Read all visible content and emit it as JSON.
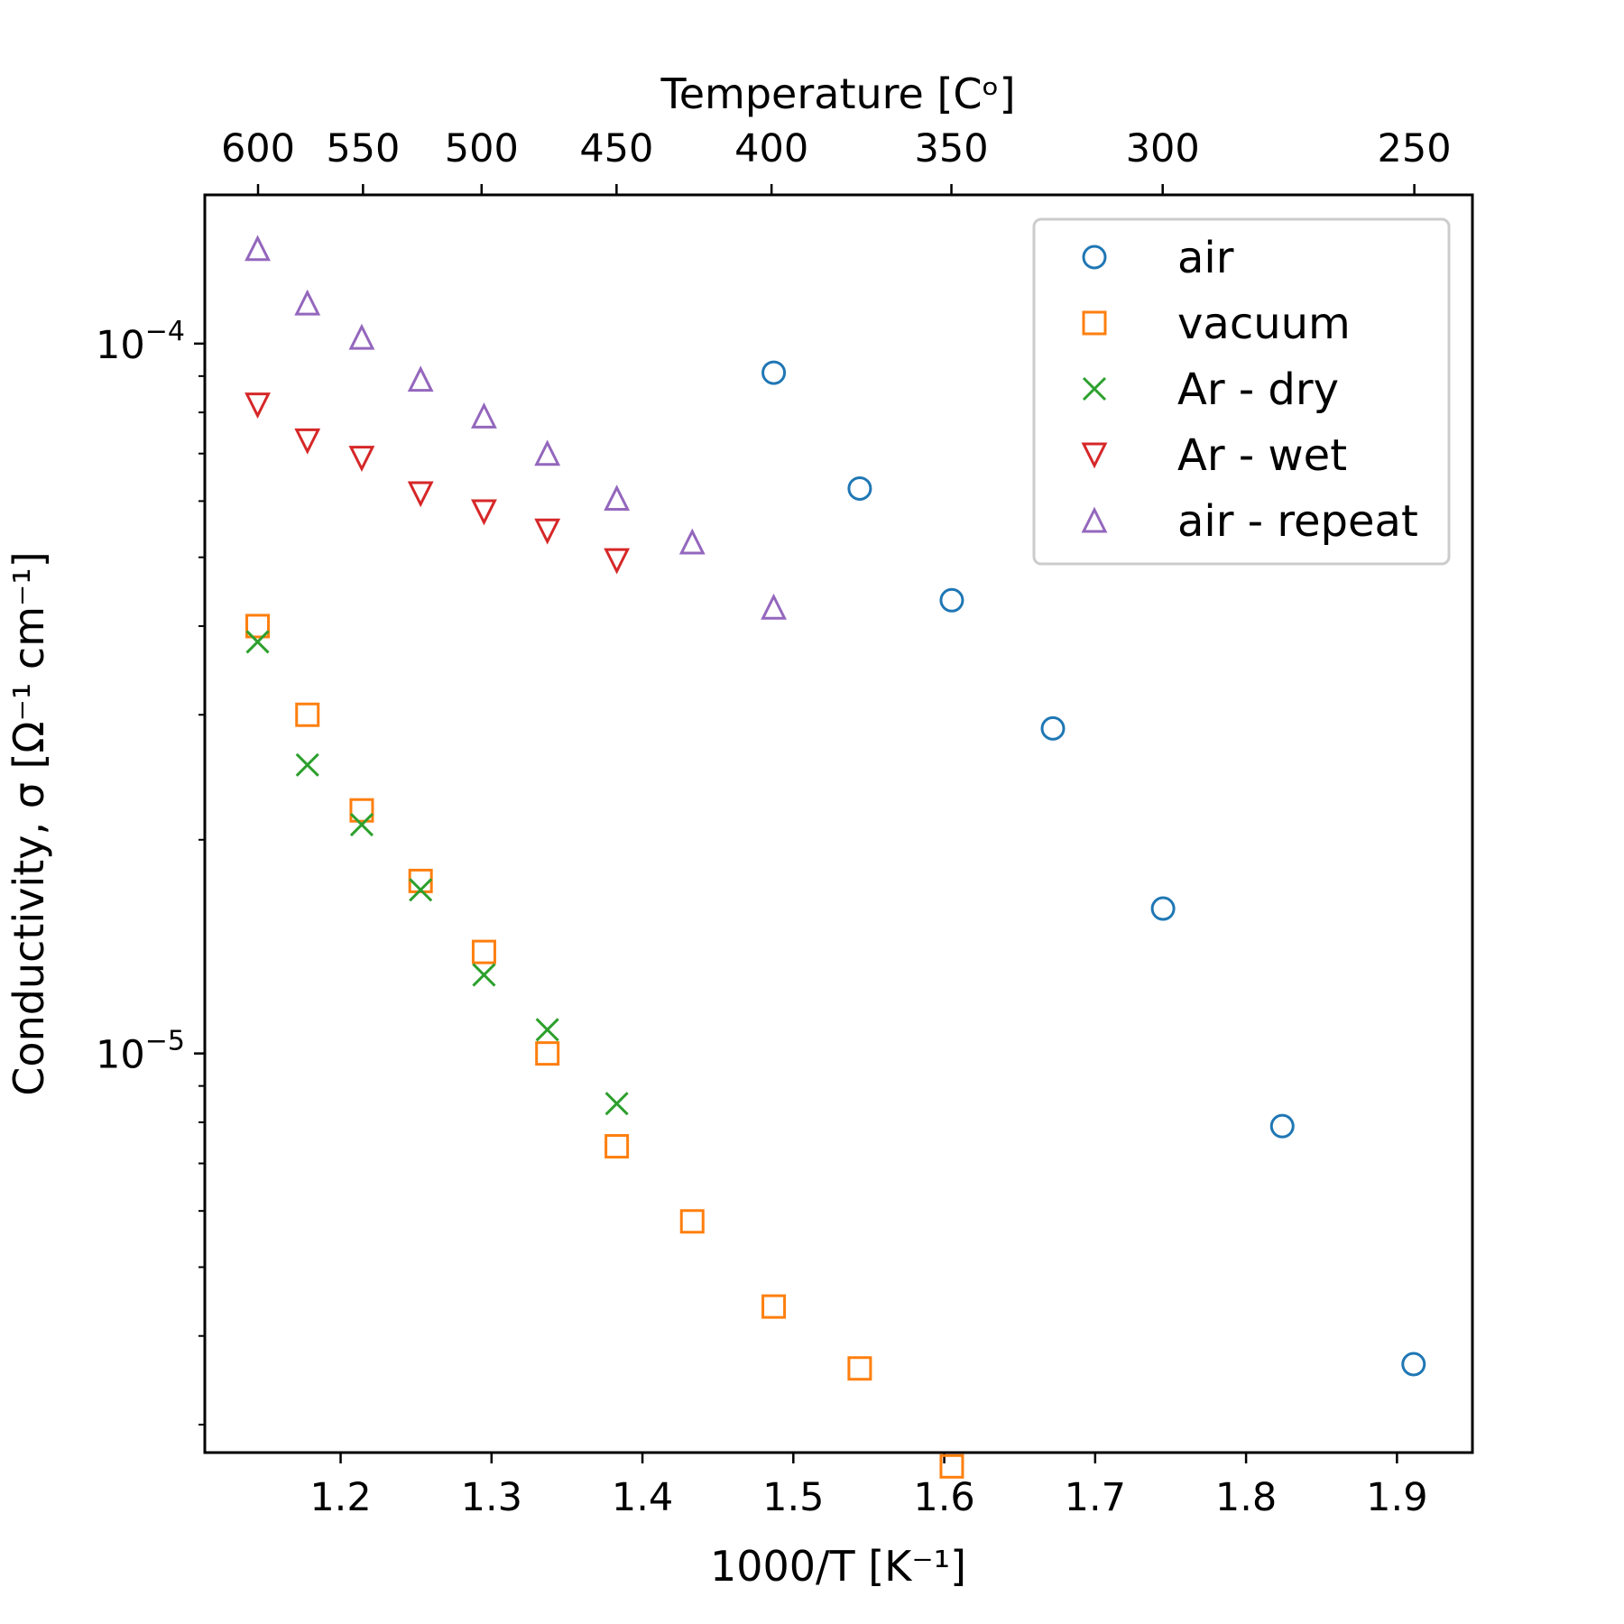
{
  "chart_data": {
    "type": "scatter",
    "xlabel": "1000/T  [K⁻¹]",
    "ylabel": "Conductivity, σ  [Ω⁻¹ cm⁻¹]",
    "top_xlabel": "Temperature  [Cᵒ]",
    "xlim": [
      1.11,
      1.95
    ],
    "ylim": [
      2.74e-06,
      0.000162
    ],
    "yscale": "log",
    "x_ticks": [
      {
        "value": 1.2,
        "label": "1.2"
      },
      {
        "value": 1.3,
        "label": "1.3"
      },
      {
        "value": 1.4,
        "label": "1.4"
      },
      {
        "value": 1.5,
        "label": "1.5"
      },
      {
        "value": 1.6,
        "label": "1.6"
      },
      {
        "value": 1.7,
        "label": "1.7"
      },
      {
        "value": 1.8,
        "label": "1.8"
      },
      {
        "value": 1.9,
        "label": "1.9"
      }
    ],
    "top_ticks": [
      {
        "celsius": 600,
        "label": "600"
      },
      {
        "celsius": 550,
        "label": "550"
      },
      {
        "celsius": 500,
        "label": "500"
      },
      {
        "celsius": 450,
        "label": "450"
      },
      {
        "celsius": 400,
        "label": "400"
      },
      {
        "celsius": 350,
        "label": "350"
      },
      {
        "celsius": 300,
        "label": "300"
      },
      {
        "celsius": 250,
        "label": "250"
      }
    ],
    "y_major_ticks": [
      {
        "value": 1e-05,
        "base": "10",
        "exp": "−5"
      },
      {
        "value": 0.0001,
        "base": "10",
        "exp": "−4"
      }
    ],
    "y_minor_ticks": [
      3e-06,
      4e-06,
      5e-06,
      6e-06,
      7e-06,
      8e-06,
      9e-06,
      2e-05,
      3e-05,
      4e-05,
      5e-05,
      6e-05,
      7e-05,
      8e-05,
      9e-05
    ],
    "grid": false,
    "legend_position": "top-right",
    "series": [
      {
        "name": "air",
        "marker": "circle",
        "color": "#1f77b4",
        "x": [
          1.487,
          1.544,
          1.605,
          1.672,
          1.745,
          1.824,
          1.911
        ],
        "y": [
          9.1e-05,
          6.25e-05,
          4.35e-05,
          2.87e-05,
          1.6e-05,
          7.9e-06,
          3.65e-06
        ]
      },
      {
        "name": "vacuum",
        "marker": "square",
        "color": "#ff7f0e",
        "x": [
          1.145,
          1.178,
          1.214,
          1.253,
          1.295,
          1.337,
          1.383,
          1.433,
          1.487,
          1.544,
          1.605
        ],
        "y": [
          4e-05,
          3e-05,
          2.2e-05,
          1.75e-05,
          1.39e-05,
          1e-05,
          7.4e-06,
          5.8e-06,
          4.4e-06,
          3.6e-06,
          2.62e-06
        ]
      },
      {
        "name": "Ar - dry",
        "marker": "x",
        "color": "#2ca02c",
        "x": [
          1.145,
          1.178,
          1.214,
          1.253,
          1.295,
          1.337,
          1.383
        ],
        "y": [
          3.8e-05,
          2.55e-05,
          2.1e-05,
          1.7e-05,
          1.29e-05,
          1.08e-05,
          8.5e-06
        ]
      },
      {
        "name": "Ar - wet",
        "marker": "triangle-down",
        "color": "#d62728",
        "x": [
          1.145,
          1.178,
          1.214,
          1.253,
          1.295,
          1.337,
          1.383
        ],
        "y": [
          8.2e-05,
          7.3e-05,
          6.9e-05,
          6.15e-05,
          5.8e-05,
          5.45e-05,
          4.95e-05
        ]
      },
      {
        "name": "air - repeat",
        "marker": "triangle-up",
        "color": "#9467bd",
        "x": [
          1.145,
          1.178,
          1.214,
          1.253,
          1.295,
          1.337,
          1.383,
          1.433,
          1.487
        ],
        "y": [
          0.000136,
          0.000114,
          0.000102,
          8.9e-05,
          7.9e-05,
          7e-05,
          6.05e-05,
          5.25e-05,
          4.25e-05
        ]
      }
    ]
  }
}
